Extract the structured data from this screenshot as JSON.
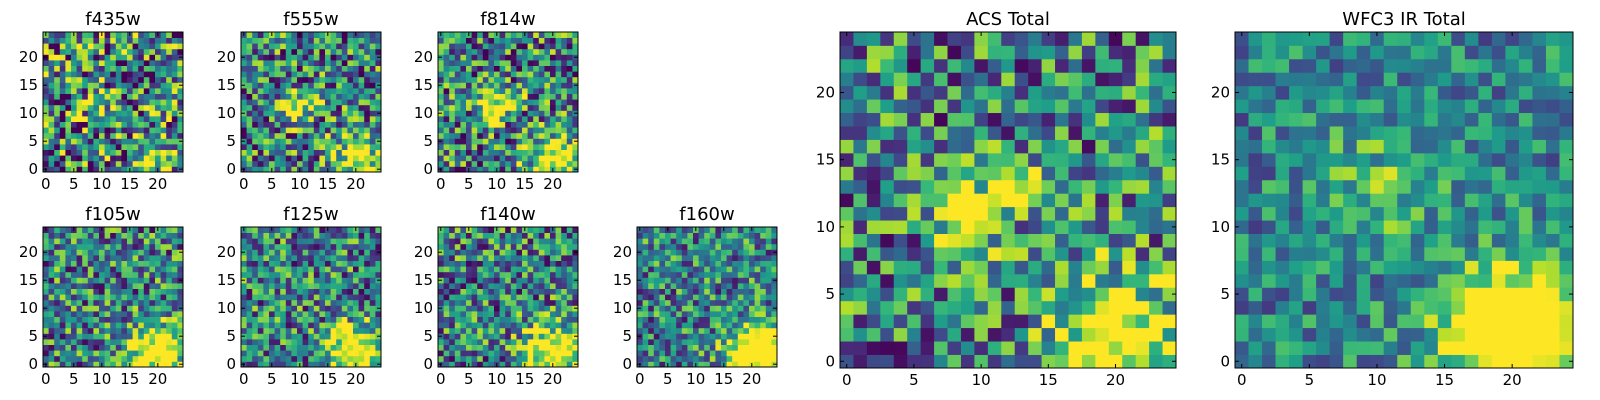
{
  "colormap": "viridis",
  "colors": {
    "low": "#440154",
    "mid": "#21908c",
    "high": "#fde725",
    "frame": "#000000",
    "background": "#ffffff"
  },
  "panels": [
    {
      "title": "f435w",
      "xticks": [
        "0",
        "5",
        "10",
        "15",
        "20"
      ],
      "yticks": [
        "0",
        "5",
        "10",
        "15",
        "20"
      ],
      "xlim": [
        -0.5,
        24.5
      ],
      "ylim": [
        -0.5,
        24.5
      ],
      "grid_size": [
        25,
        25
      ],
      "noise": 0.7,
      "seed": 11,
      "blobs": [
        {
          "x": 9,
          "y": 11,
          "sigma": 2.2,
          "amp": 0.25
        },
        {
          "x": 20,
          "y": 2,
          "sigma": 2.5,
          "amp": 0.45
        }
      ]
    },
    {
      "title": "f555w",
      "xticks": [
        "0",
        "5",
        "10",
        "15",
        "20"
      ],
      "yticks": [
        "0",
        "5",
        "10",
        "15",
        "20"
      ],
      "xlim": [
        -0.5,
        24.5
      ],
      "ylim": [
        -0.5,
        24.5
      ],
      "grid_size": [
        25,
        25
      ],
      "noise": 0.6,
      "seed": 23,
      "blobs": [
        {
          "x": 9,
          "y": 11,
          "sigma": 1.8,
          "amp": 0.7
        },
        {
          "x": 13,
          "y": 12,
          "sigma": 1.2,
          "amp": 0.5
        },
        {
          "x": 20,
          "y": 2,
          "sigma": 3,
          "amp": 0.6
        }
      ]
    },
    {
      "title": "f814w",
      "xticks": [
        "0",
        "5",
        "10",
        "15",
        "20"
      ],
      "yticks": [
        "0",
        "5",
        "10",
        "15",
        "20"
      ],
      "xlim": [
        -0.5,
        24.5
      ],
      "ylim": [
        -0.5,
        24.5
      ],
      "grid_size": [
        25,
        25
      ],
      "noise": 0.6,
      "seed": 37,
      "blobs": [
        {
          "x": 9,
          "y": 11,
          "sigma": 1.8,
          "amp": 0.75
        },
        {
          "x": 13,
          "y": 12,
          "sigma": 1.2,
          "amp": 0.6
        },
        {
          "x": 20,
          "y": 2,
          "sigma": 3,
          "amp": 0.7
        }
      ]
    },
    {
      "title": "f105w",
      "xticks": [
        "0",
        "5",
        "10",
        "15",
        "20"
      ],
      "yticks": [
        "0",
        "5",
        "10",
        "15",
        "20"
      ],
      "xlim": [
        -0.5,
        24.5
      ],
      "ylim": [
        -0.5,
        24.5
      ],
      "grid_size": [
        25,
        25
      ],
      "noise": 0.55,
      "seed": 41,
      "blobs": [
        {
          "x": 20,
          "y": 2,
          "sigma": 3.5,
          "amp": 0.8
        }
      ]
    },
    {
      "title": "f125w",
      "xticks": [
        "0",
        "5",
        "10",
        "15",
        "20"
      ],
      "yticks": [
        "0",
        "5",
        "10",
        "15",
        "20"
      ],
      "xlim": [
        -0.5,
        24.5
      ],
      "ylim": [
        -0.5,
        24.5
      ],
      "grid_size": [
        25,
        25
      ],
      "noise": 0.55,
      "seed": 53,
      "blobs": [
        {
          "x": 20,
          "y": 2,
          "sigma": 3.5,
          "amp": 0.8
        }
      ]
    },
    {
      "title": "f140w",
      "xticks": [
        "0",
        "5",
        "10",
        "15",
        "20"
      ],
      "yticks": [
        "0",
        "5",
        "10",
        "15",
        "20"
      ],
      "xlim": [
        -0.5,
        24.5
      ],
      "ylim": [
        -0.5,
        24.5
      ],
      "grid_size": [
        25,
        25
      ],
      "noise": 0.55,
      "seed": 67,
      "blobs": [
        {
          "x": 20,
          "y": 2,
          "sigma": 3.5,
          "amp": 0.8
        }
      ]
    },
    {
      "title": "f160w",
      "xticks": [
        "0",
        "5",
        "10",
        "15",
        "20"
      ],
      "yticks": [
        "0",
        "5",
        "10",
        "15",
        "20"
      ],
      "xlim": [
        -0.5,
        24.5
      ],
      "ylim": [
        -0.5,
        24.5
      ],
      "grid_size": [
        25,
        25
      ],
      "noise": 0.5,
      "seed": 79,
      "blobs": [
        {
          "x": 21,
          "y": 2,
          "sigma": 3.5,
          "amp": 1.0
        }
      ]
    },
    {
      "title": "ACS Total",
      "xticks": [
        "0",
        "5",
        "10",
        "15",
        "20"
      ],
      "yticks": [
        "0",
        "5",
        "10",
        "15",
        "20"
      ],
      "xlim": [
        -0.5,
        24.5
      ],
      "ylim": [
        -0.5,
        24.5
      ],
      "grid_size": [
        25,
        25
      ],
      "noise": 0.55,
      "seed": 97,
      "blobs": [
        {
          "x": 9,
          "y": 11,
          "sigma": 1.7,
          "amp": 0.9
        },
        {
          "x": 13,
          "y": 13,
          "sigma": 1.2,
          "amp": 0.7
        },
        {
          "x": 20,
          "y": 2,
          "sigma": 3,
          "amp": 0.8
        }
      ]
    },
    {
      "title": "WFC3 IR Total",
      "xticks": [
        "0",
        "5",
        "10",
        "15",
        "20"
      ],
      "yticks": [
        "0",
        "5",
        "10",
        "15",
        "20"
      ],
      "xlim": [
        -0.5,
        24.5
      ],
      "ylim": [
        -0.5,
        24.5
      ],
      "grid_size": [
        25,
        25
      ],
      "noise": 0.35,
      "seed": 113,
      "blobs": [
        {
          "x": 20,
          "y": 2,
          "sigma": 3.5,
          "amp": 1.0
        },
        {
          "x": 10,
          "y": 13,
          "sigma": 3,
          "amp": 0.25
        }
      ]
    }
  ]
}
